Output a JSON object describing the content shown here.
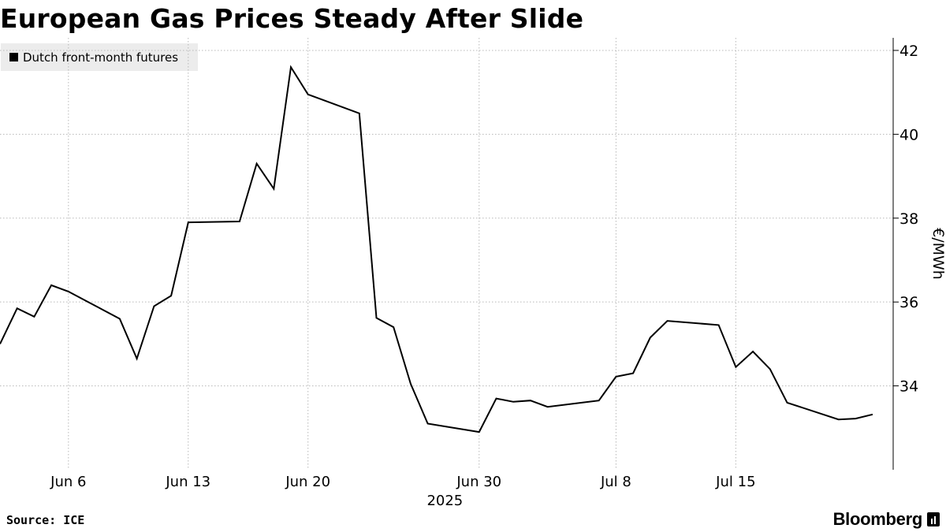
{
  "title": "European Gas Prices Steady After Slide",
  "footer": {
    "source": "Source: ICE",
    "brand": "Bloomberg",
    "brand_icon": "bloomberg-terminal-icon"
  },
  "chart_data": {
    "type": "line",
    "legend": {
      "entries": [
        "Dutch front-month futures"
      ],
      "placement": "top-left"
    },
    "ylabel": "€/MWh",
    "ylim": [
      32,
      42.3
    ],
    "yticks": [
      34,
      36,
      38,
      40,
      42
    ],
    "y_axis_position": "right",
    "x_range": [
      "2025-06-02",
      "2025-07-23"
    ],
    "xticks": [
      {
        "date": "2025-06-06",
        "label": "Jun 6"
      },
      {
        "date": "2025-06-13",
        "label": "Jun 13"
      },
      {
        "date": "2025-06-20",
        "label": "Jun 20"
      },
      {
        "date": "2025-06-30",
        "label": "Jun 30"
      },
      {
        "date": "2025-07-08",
        "label": "Jul 8"
      },
      {
        "date": "2025-07-15",
        "label": "Jul 15"
      }
    ],
    "year_label": "2025",
    "grid": true,
    "series": [
      {
        "name": "Dutch front-month futures",
        "color": "#000000",
        "x": [
          "2025-06-02",
          "2025-06-03",
          "2025-06-04",
          "2025-06-05",
          "2025-06-06",
          "2025-06-09",
          "2025-06-10",
          "2025-06-11",
          "2025-06-12",
          "2025-06-13",
          "2025-06-16",
          "2025-06-17",
          "2025-06-18",
          "2025-06-19",
          "2025-06-20",
          "2025-06-23",
          "2025-06-24",
          "2025-06-25",
          "2025-06-26",
          "2025-06-27",
          "2025-06-30",
          "2025-07-01",
          "2025-07-02",
          "2025-07-03",
          "2025-07-04",
          "2025-07-07",
          "2025-07-08",
          "2025-07-09",
          "2025-07-10",
          "2025-07-11",
          "2025-07-14",
          "2025-07-15",
          "2025-07-16",
          "2025-07-17",
          "2025-07-18",
          "2025-07-21",
          "2025-07-22",
          "2025-07-23"
        ],
        "values": [
          35.0,
          35.85,
          35.65,
          36.4,
          36.25,
          35.6,
          34.65,
          35.9,
          36.15,
          37.9,
          37.92,
          39.3,
          38.7,
          41.6,
          40.95,
          40.5,
          35.62,
          35.4,
          34.05,
          33.1,
          32.9,
          33.7,
          33.62,
          33.65,
          33.5,
          33.65,
          34.22,
          34.3,
          35.15,
          35.55,
          35.45,
          34.45,
          34.82,
          34.4,
          33.6,
          33.2,
          33.22,
          33.32
        ]
      }
    ]
  }
}
